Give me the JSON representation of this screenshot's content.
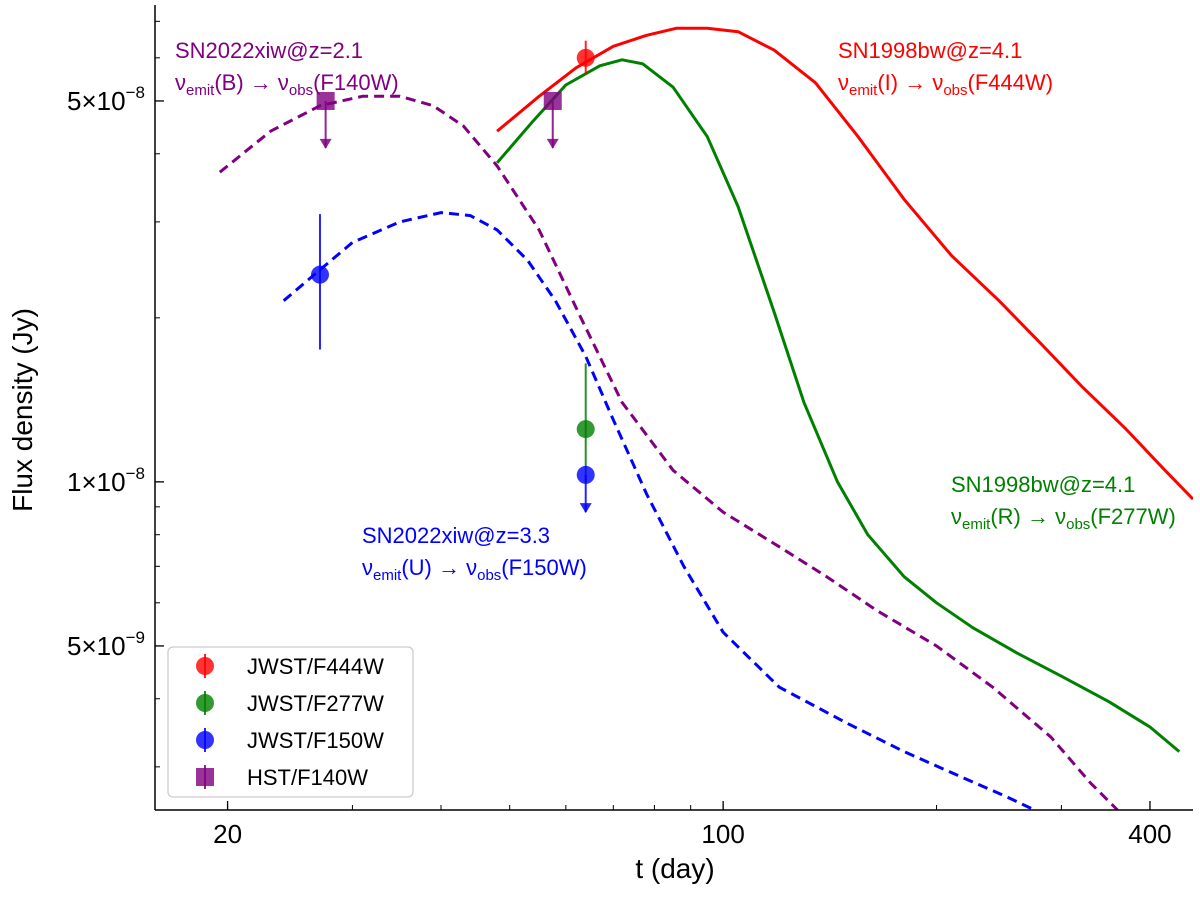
{
  "chart_data": {
    "type": "line",
    "title": "",
    "xlabel": "t (day)",
    "ylabel": "Flux density (Jy)",
    "xscale": "log",
    "yscale": "log",
    "xlim": [
      15.8,
      460
    ],
    "ylim": [
      2.5e-09,
      7.5e-08
    ],
    "x_ticks": [
      {
        "value": 20,
        "label": "20"
      },
      {
        "value": 100,
        "label": "100"
      },
      {
        "value": 400,
        "label": "400"
      }
    ],
    "y_ticks": [
      {
        "value": 5e-08,
        "mant": "5",
        "exp": "−8"
      },
      {
        "value": 1e-08,
        "mant": "1",
        "exp": "−8"
      },
      {
        "value": 5e-09,
        "mant": "5",
        "exp": "−9"
      }
    ],
    "series": [
      {
        "name": "SN1998bw F444W model",
        "color": "#ff0000",
        "style": "solid",
        "x": [
          48,
          55,
          62,
          70,
          78,
          86,
          95,
          105,
          118,
          135,
          155,
          180,
          210,
          245,
          280,
          320,
          370,
          420,
          460
        ],
        "y": [
          4.4e-08,
          5.1e-08,
          5.75e-08,
          6.3e-08,
          6.6e-08,
          6.8e-08,
          6.8e-08,
          6.7e-08,
          6.2e-08,
          5.4e-08,
          4.3e-08,
          3.3e-08,
          2.6e-08,
          2.15e-08,
          1.8e-08,
          1.5e-08,
          1.25e-08,
          1.05e-08,
          9.3e-09
        ]
      },
      {
        "name": "SN1998bw F277W model",
        "color": "#008000",
        "style": "solid",
        "x": [
          48,
          54,
          60,
          67,
          72,
          77,
          85,
          95,
          105,
          118,
          130,
          145,
          160,
          180,
          200,
          225,
          260,
          300,
          350,
          400,
          440
        ],
        "y": [
          3.85e-08,
          4.6e-08,
          5.35e-08,
          5.8e-08,
          5.95e-08,
          5.85e-08,
          5.3e-08,
          4.3e-08,
          3.2e-08,
          2.05e-08,
          1.4e-08,
          1e-08,
          8e-09,
          6.7e-09,
          6e-09,
          5.4e-09,
          4.85e-09,
          4.4e-09,
          3.95e-09,
          3.55e-09,
          3.2e-09
        ]
      },
      {
        "name": "SN2022xiw F140W model",
        "color": "#800080",
        "style": "dashed",
        "x": [
          19.5,
          23,
          27,
          31,
          35,
          39,
          43,
          48,
          55,
          63,
          72,
          85,
          100,
          120,
          140,
          165,
          200,
          240,
          290,
          330,
          360
        ],
        "y": [
          3.7e-08,
          4.4e-08,
          4.9e-08,
          5.1e-08,
          5.1e-08,
          4.9e-08,
          4.5e-08,
          3.8e-08,
          2.9e-08,
          2e-08,
          1.4e-08,
          1.05e-08,
          8.8e-09,
          7.6e-09,
          6.7e-09,
          5.8e-09,
          5e-09,
          4.2e-09,
          3.4e-09,
          2.8e-09,
          2.5e-09
        ]
      },
      {
        "name": "SN2022xiw F150W model",
        "color": "#0000ff",
        "style": "dashed",
        "x": [
          24,
          27,
          30,
          35,
          40,
          44,
          48,
          53,
          58,
          64,
          70,
          78,
          88,
          100,
          120,
          150,
          180,
          220,
          250,
          275
        ],
        "y": [
          2.15e-08,
          2.45e-08,
          2.75e-08,
          3e-08,
          3.12e-08,
          3.08e-08,
          2.9e-08,
          2.55e-08,
          2.15e-08,
          1.7e-08,
          1.3e-08,
          9.5e-09,
          7e-09,
          5.3e-09,
          4.2e-09,
          3.6e-09,
          3.2e-09,
          2.85e-09,
          2.65e-09,
          2.5e-09
        ]
      }
    ],
    "points": [
      {
        "name": "JWST/F444W",
        "color": "#ff0000",
        "marker": "circle",
        "x": 64,
        "y": 6e-08,
        "yerr_low": 5.6e-08,
        "yerr_high": 6.45e-08,
        "upper_limit": false
      },
      {
        "name": "JWST/F277W",
        "color": "#008000",
        "marker": "circle",
        "x": 64,
        "y": 1.25e-08,
        "yerr_low": 1e-08,
        "yerr_high": 1.65e-08,
        "upper_limit": false
      },
      {
        "name": "JWST/F150W",
        "color": "#0000ff",
        "marker": "circle",
        "x": 64,
        "y": 1.03e-08,
        "yerr_low": 8.8e-09,
        "yerr_high": 1.03e-08,
        "upper_limit": true
      },
      {
        "name": "JWST/F150W",
        "color": "#0000ff",
        "marker": "circle",
        "x": 27,
        "y": 2.4e-08,
        "yerr_low": 1.75e-08,
        "yerr_high": 3.1e-08,
        "upper_limit": false
      },
      {
        "name": "HST/F140W",
        "color": "#800080",
        "marker": "square",
        "x": 27.5,
        "y": 5e-08,
        "yerr_low": 4.1e-08,
        "yerr_high": 5e-08,
        "upper_limit": true
      },
      {
        "name": "HST/F140W",
        "color": "#800080",
        "marker": "square",
        "x": 57.5,
        "y": 5e-08,
        "yerr_low": 4.1e-08,
        "yerr_high": 5e-08,
        "upper_limit": true
      }
    ],
    "annotations": [
      {
        "id": "ann-1",
        "color": "#800080",
        "title": "SN2022xiw@z=2.1",
        "band_in": "B",
        "band_out": "F140W"
      },
      {
        "id": "ann-2",
        "color": "#ff0000",
        "title": "SN1998bw@z=4.1",
        "band_in": "I",
        "band_out": "F444W"
      },
      {
        "id": "ann-3",
        "color": "#0000ff",
        "title": "SN2022xiw@z=3.3",
        "band_in": "U",
        "band_out": "F150W"
      },
      {
        "id": "ann-4",
        "color": "#008000",
        "title": "SN1998bw@z=4.1",
        "band_in": "R",
        "band_out": "F277W"
      }
    ],
    "legend": {
      "placement": "lower-left",
      "entries": [
        {
          "label": "JWST/F444W",
          "color": "#ff0000",
          "marker": "circle"
        },
        {
          "label": "JWST/F277W",
          "color": "#008000",
          "marker": "circle"
        },
        {
          "label": "JWST/F150W",
          "color": "#0000ff",
          "marker": "circle"
        },
        {
          "label": "HST/F140W",
          "color": "#800080",
          "marker": "square"
        }
      ]
    }
  }
}
